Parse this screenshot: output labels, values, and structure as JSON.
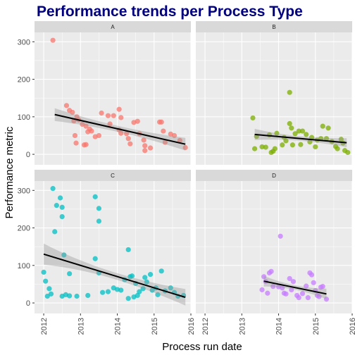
{
  "colors": {
    "title": "#00007F",
    "panel_bg": "#EBEBEB",
    "strip_bg": "#D9D9D9",
    "grid_major": "#FFFFFF",
    "trend": "#000000",
    "ribbon": "#999999"
  },
  "chart_data": {
    "type": "scatter",
    "title": "Performance trends per Process Type",
    "xlabel": "Process run date",
    "ylabel": "Performance metric",
    "x_ticks": [
      "2012",
      "2013",
      "2014",
      "2015",
      "2016"
    ],
    "y_ticks": [
      0,
      100,
      200,
      300
    ],
    "xlim": [
      2011.75,
      2016.0
    ],
    "ylim": [
      -28,
      325
    ],
    "grid": true,
    "facets": [
      {
        "strip": "A",
        "color": "#F8766D",
        "trend": {
          "x": [
            2012.3,
            2015.85
          ],
          "y": [
            106,
            27
          ],
          "band_halfwidth_start": 17,
          "band_halfwidth_mid": 8,
          "band_halfwidth_end": 17
        },
        "points": [
          [
            2012.25,
            304
          ],
          [
            2012.62,
            130
          ],
          [
            2012.78,
            112
          ],
          [
            2012.7,
            117
          ],
          [
            2012.9,
            100
          ],
          [
            2012.95,
            92
          ],
          [
            2013.15,
            75
          ],
          [
            2013.05,
            80
          ],
          [
            2012.82,
            89
          ],
          [
            2013.25,
            67
          ],
          [
            2013.3,
            62
          ],
          [
            2013.2,
            60
          ],
          [
            2012.85,
            50
          ],
          [
            2012.88,
            30
          ],
          [
            2013.1,
            25
          ],
          [
            2013.15,
            26
          ],
          [
            2013.4,
            47
          ],
          [
            2013.5,
            50
          ],
          [
            2013.57,
            110
          ],
          [
            2013.75,
            103
          ],
          [
            2013.9,
            103
          ],
          [
            2013.8,
            81
          ],
          [
            2014.05,
            120
          ],
          [
            2014.1,
            98
          ],
          [
            2014.05,
            65
          ],
          [
            2014.1,
            56
          ],
          [
            2014.25,
            55
          ],
          [
            2014.3,
            42
          ],
          [
            2014.35,
            28
          ],
          [
            2014.45,
            85
          ],
          [
            2014.55,
            88
          ],
          [
            2014.6,
            55
          ],
          [
            2014.72,
            38
          ],
          [
            2014.75,
            23
          ],
          [
            2014.75,
            10
          ],
          [
            2014.9,
            17
          ],
          [
            2015.15,
            86
          ],
          [
            2015.2,
            86
          ],
          [
            2015.25,
            62
          ],
          [
            2015.3,
            32
          ],
          [
            2015.45,
            54
          ],
          [
            2015.55,
            50
          ],
          [
            2015.7,
            37
          ],
          [
            2015.85,
            18
          ]
        ]
      },
      {
        "strip": "B",
        "color": "#7CAE00",
        "trend": {
          "x": [
            2013.35,
            2015.85
          ],
          "y": [
            53,
            31
          ],
          "band_halfwidth_start": 15,
          "band_halfwidth_mid": 6,
          "band_halfwidth_end": 12
        },
        "points": [
          [
            2013.3,
            97
          ],
          [
            2013.4,
            48
          ],
          [
            2013.35,
            15
          ],
          [
            2013.55,
            20
          ],
          [
            2013.65,
            19
          ],
          [
            2013.75,
            52
          ],
          [
            2013.85,
            8
          ],
          [
            2013.8,
            5
          ],
          [
            2013.9,
            15
          ],
          [
            2013.95,
            56
          ],
          [
            2014.1,
            25
          ],
          [
            2014.15,
            45
          ],
          [
            2014.2,
            36
          ],
          [
            2014.3,
            165
          ],
          [
            2014.3,
            82
          ],
          [
            2014.35,
            70
          ],
          [
            2014.38,
            25
          ],
          [
            2014.45,
            55
          ],
          [
            2014.55,
            62
          ],
          [
            2014.6,
            26
          ],
          [
            2014.65,
            62
          ],
          [
            2014.75,
            53
          ],
          [
            2014.85,
            33
          ],
          [
            2014.9,
            45
          ],
          [
            2015.0,
            20
          ],
          [
            2015.05,
            38
          ],
          [
            2015.15,
            42
          ],
          [
            2015.2,
            75
          ],
          [
            2015.3,
            42
          ],
          [
            2015.35,
            70
          ],
          [
            2015.45,
            34
          ],
          [
            2015.55,
            21
          ],
          [
            2015.6,
            15
          ],
          [
            2015.7,
            40
          ],
          [
            2015.75,
            30
          ],
          [
            2015.8,
            10
          ],
          [
            2015.88,
            5
          ]
        ]
      },
      {
        "strip": "C",
        "color": "#00BFC4",
        "trend": {
          "x": [
            2012.0,
            2015.85
          ],
          "y": [
            130,
            15
          ],
          "band_halfwidth_start": 28,
          "band_halfwidth_mid": 9,
          "band_halfwidth_end": 22
        },
        "points": [
          [
            2012.0,
            82
          ],
          [
            2012.05,
            58
          ],
          [
            2012.15,
            38
          ],
          [
            2012.1,
            18
          ],
          [
            2012.2,
            24
          ],
          [
            2012.25,
            305
          ],
          [
            2012.35,
            260
          ],
          [
            2012.45,
            280
          ],
          [
            2012.5,
            255
          ],
          [
            2012.5,
            230
          ],
          [
            2012.3,
            190
          ],
          [
            2012.55,
            128
          ],
          [
            2012.5,
            18
          ],
          [
            2012.6,
            22
          ],
          [
            2012.7,
            78
          ],
          [
            2012.7,
            19
          ],
          [
            2012.9,
            18
          ],
          [
            2013.2,
            20
          ],
          [
            2013.4,
            283
          ],
          [
            2013.5,
            252
          ],
          [
            2013.5,
            218
          ],
          [
            2013.4,
            118
          ],
          [
            2013.5,
            80
          ],
          [
            2013.6,
            28
          ],
          [
            2013.75,
            30
          ],
          [
            2013.9,
            40
          ],
          [
            2014.0,
            36
          ],
          [
            2014.1,
            34
          ],
          [
            2014.2,
            62
          ],
          [
            2014.3,
            142
          ],
          [
            2014.3,
            12
          ],
          [
            2014.35,
            70
          ],
          [
            2014.4,
            72
          ],
          [
            2014.45,
            16
          ],
          [
            2014.5,
            52
          ],
          [
            2014.55,
            20
          ],
          [
            2014.6,
            30
          ],
          [
            2014.7,
            38
          ],
          [
            2014.75,
            68
          ],
          [
            2014.8,
            56
          ],
          [
            2014.9,
            76
          ],
          [
            2014.95,
            34
          ],
          [
            2015.05,
            40
          ],
          [
            2015.1,
            22
          ],
          [
            2015.2,
            85
          ],
          [
            2015.3,
            32
          ],
          [
            2015.45,
            40
          ],
          [
            2015.55,
            28
          ],
          [
            2015.65,
            18
          ],
          [
            2015.8,
            20
          ]
        ]
      },
      {
        "strip": "D",
        "color": "#C77CFF",
        "trend": {
          "x": [
            2013.6,
            2015.3
          ],
          "y": [
            58,
            24
          ],
          "band_halfwidth_start": 14,
          "band_halfwidth_mid": 6,
          "band_halfwidth_end": 14
        },
        "points": [
          [
            2013.55,
            35
          ],
          [
            2013.6,
            70
          ],
          [
            2013.65,
            57
          ],
          [
            2013.7,
            26
          ],
          [
            2013.75,
            80
          ],
          [
            2013.8,
            84
          ],
          [
            2013.85,
            44
          ],
          [
            2014.0,
            43
          ],
          [
            2014.05,
            178
          ],
          [
            2014.1,
            40
          ],
          [
            2014.15,
            26
          ],
          [
            2014.2,
            24
          ],
          [
            2014.3,
            65
          ],
          [
            2014.35,
            35
          ],
          [
            2014.4,
            57
          ],
          [
            2014.5,
            20
          ],
          [
            2014.55,
            14
          ],
          [
            2014.65,
            25
          ],
          [
            2014.75,
            45
          ],
          [
            2014.8,
            14
          ],
          [
            2014.85,
            80
          ],
          [
            2014.9,
            75
          ],
          [
            2014.95,
            54
          ],
          [
            2015.0,
            33
          ],
          [
            2015.05,
            20
          ],
          [
            2015.1,
            17
          ],
          [
            2015.15,
            42
          ],
          [
            2015.2,
            44
          ],
          [
            2015.3,
            10
          ]
        ]
      }
    ]
  }
}
